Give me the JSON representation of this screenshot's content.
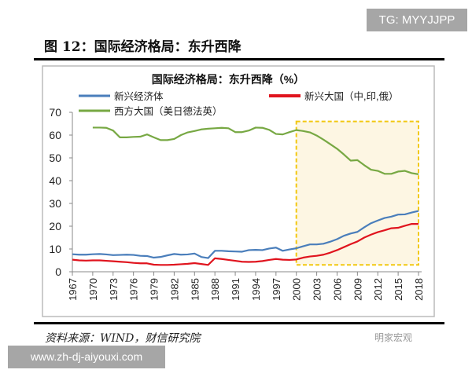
{
  "badge_top": "TG: MYYJJPP",
  "figure_title": "图 12：国际经济格局：东升西降",
  "source": "资料来源：WIND，财信研究院",
  "watermark": "明家宏观",
  "site_banner": "www.zh-dj-aiyouxi.com",
  "chart_data": {
    "type": "line",
    "title": "国际经济格局：东升西降（%）",
    "xlabel": "",
    "ylabel": "",
    "xlim": [
      1967,
      2018
    ],
    "ylim": [
      0,
      70
    ],
    "yticks": [
      0,
      10,
      20,
      30,
      40,
      50,
      60,
      70
    ],
    "xticks": [
      "1967",
      "1970",
      "1973",
      "1976",
      "1979",
      "1982",
      "1985",
      "1988",
      "1991",
      "1994",
      "1997",
      "2000",
      "2003",
      "2006",
      "2009",
      "2012",
      "2015",
      "2018"
    ],
    "grid": false,
    "legend_position": "top",
    "highlight_region": {
      "x": [
        2000,
        2018
      ],
      "y": [
        3,
        66
      ],
      "fill": "#fdf6e3",
      "stroke": "#f2c811"
    },
    "series": [
      {
        "name": "新兴经济体",
        "color": "#4a7ebb",
        "start_year": 1967,
        "values": [
          7.7,
          7.5,
          7.5,
          7.7,
          7.8,
          7.6,
          7.3,
          7.4,
          7.5,
          7.4,
          7.0,
          6.9,
          6.2,
          6.5,
          7.2,
          7.8,
          7.5,
          7.6,
          8.0,
          6.5,
          6.0,
          9.2,
          9.2,
          9.0,
          8.9,
          8.8,
          9.5,
          9.6,
          9.5,
          10.2,
          10.6,
          9.2,
          9.8,
          10.3,
          11.2,
          12.0,
          12.0,
          12.3,
          13.2,
          14.3,
          15.8,
          16.8,
          17.5,
          19.5,
          21.3,
          22.5,
          23.6,
          24.2,
          25.1,
          25.2,
          26.0,
          26.7
        ]
      },
      {
        "name": "新兴大国（中,印,俄）",
        "color": "#e0141e",
        "start_year": 1967,
        "values": [
          5.3,
          5.0,
          4.9,
          5.0,
          5.0,
          4.8,
          4.6,
          4.4,
          4.2,
          3.9,
          3.7,
          3.7,
          3.1,
          3.0,
          3.0,
          3.1,
          3.3,
          3.5,
          3.8,
          3.4,
          3.0,
          5.9,
          5.6,
          5.2,
          4.8,
          4.4,
          4.3,
          4.4,
          4.7,
          5.2,
          5.6,
          5.3,
          5.2,
          5.4,
          6.2,
          6.7,
          7.0,
          7.5,
          8.4,
          9.5,
          10.8,
          12.1,
          13.3,
          15.0,
          16.3,
          17.4,
          18.2,
          19.1,
          19.3,
          20.2,
          21.0,
          21.0
        ]
      },
      {
        "name": "西方大国（美日德法英）",
        "color": "#77a843",
        "start_year": 1970,
        "values": [
          63.3,
          63.3,
          63.2,
          62.0,
          59.0,
          59.0,
          59.2,
          59.3,
          60.3,
          59.0,
          57.8,
          57.8,
          58.3,
          60.0,
          61.2,
          61.8,
          62.5,
          62.8,
          63.0,
          63.2,
          63.0,
          61.3,
          61.3,
          62.0,
          63.3,
          63.2,
          62.3,
          60.5,
          60.3,
          61.3,
          62.2,
          61.8,
          61.2,
          59.8,
          58.0,
          56.0,
          54.0,
          51.5,
          48.8,
          49.0,
          46.8,
          44.8,
          44.3,
          43.0,
          43.0,
          44.0,
          44.3,
          43.3,
          42.8
        ]
      }
    ]
  }
}
